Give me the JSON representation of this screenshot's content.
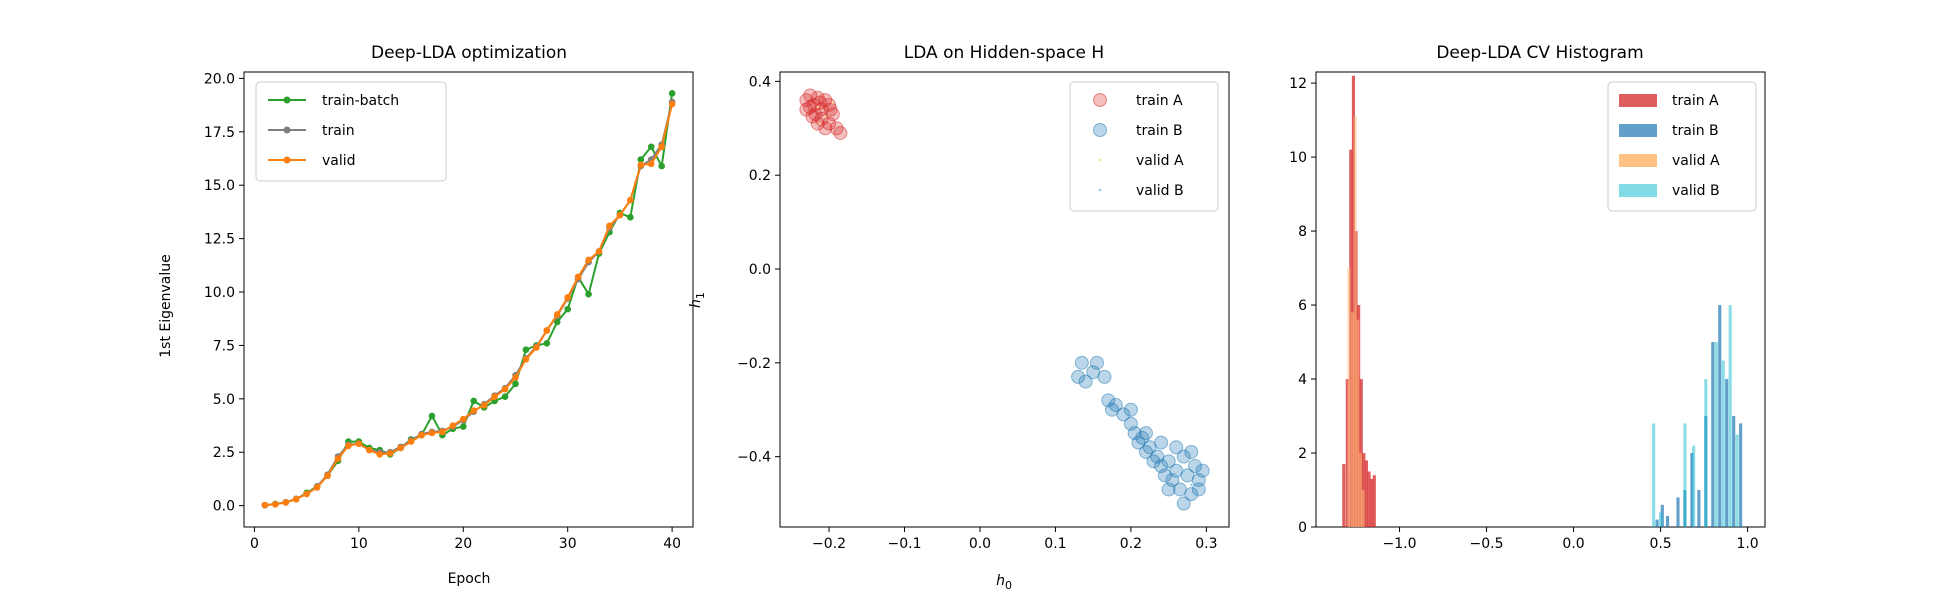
{
  "charts": [
    {
      "title": "Deep-LDA optimization",
      "xlabel": "Epoch",
      "ylabel": "1st Eigenvalue",
      "xticks": [
        "0",
        "10",
        "20",
        "30",
        "40"
      ],
      "yticks": [
        "0.0",
        "2.5",
        "5.0",
        "7.5",
        "10.0",
        "12.5",
        "15.0",
        "17.5",
        "20.0"
      ],
      "legend": [
        "train-batch",
        "train",
        "valid"
      ]
    },
    {
      "title": "LDA on Hidden-space H",
      "xlabel_main": "h",
      "xlabel_sub": "0",
      "ylabel_main": "h",
      "ylabel_sub": "1",
      "xticks": [
        "−0.2",
        "−0.1",
        "0.0",
        "0.1",
        "0.2",
        "0.3"
      ],
      "yticks": [
        "−0.4",
        "−0.2",
        "0.0",
        "0.2",
        "0.4"
      ],
      "legend": [
        "train A",
        "train B",
        "valid A",
        "valid B"
      ]
    },
    {
      "title": "Deep-LDA CV Histogram",
      "xticks": [
        "−1.0",
        "−0.5",
        "0.0",
        "0.5",
        "1.0"
      ],
      "yticks": [
        "0",
        "2",
        "4",
        "6",
        "8",
        "10",
        "12"
      ],
      "legend": [
        "train A",
        "train B",
        "valid A",
        "valid B"
      ]
    }
  ],
  "chart_data": [
    {
      "type": "line",
      "title": "Deep-LDA optimization",
      "xlabel": "Epoch",
      "ylabel": "1st Eigenvalue",
      "xlim": [
        -1,
        42
      ],
      "ylim": [
        -1,
        20.3
      ],
      "x": [
        1,
        2,
        3,
        4,
        5,
        6,
        7,
        8,
        9,
        10,
        11,
        12,
        13,
        14,
        15,
        16,
        17,
        18,
        19,
        20,
        21,
        22,
        23,
        24,
        25,
        26,
        27,
        28,
        29,
        30,
        31,
        32,
        33,
        34,
        35,
        36,
        37,
        38,
        39,
        40
      ],
      "series": [
        {
          "name": "train-batch",
          "color": "#2ca02c",
          "values": [
            0.02,
            0.08,
            0.15,
            0.3,
            0.6,
            0.9,
            1.4,
            2.1,
            3.0,
            3.0,
            2.7,
            2.6,
            2.4,
            2.7,
            3.1,
            3.3,
            4.2,
            3.3,
            3.6,
            3.7,
            4.9,
            4.6,
            4.9,
            5.1,
            5.7,
            7.3,
            7.5,
            7.6,
            8.6,
            9.2,
            10.7,
            9.9,
            11.8,
            12.8,
            13.7,
            13.5,
            16.2,
            16.8,
            15.9,
            19.3
          ]
        },
        {
          "name": "train",
          "color": "#7f7f7f",
          "values": [
            0.02,
            0.07,
            0.16,
            0.32,
            0.55,
            0.9,
            1.45,
            2.3,
            2.85,
            2.9,
            2.6,
            2.5,
            2.5,
            2.75,
            3.05,
            3.35,
            3.45,
            3.5,
            3.7,
            4.0,
            4.4,
            4.75,
            5.15,
            5.5,
            6.1,
            6.9,
            7.45,
            8.2,
            8.9,
            9.7,
            10.6,
            11.4,
            11.9,
            13.0,
            13.6,
            14.3,
            15.9,
            16.2,
            16.9,
            18.9
          ]
        },
        {
          "name": "valid",
          "color": "#ff7f0e",
          "values": [
            0.03,
            0.06,
            0.15,
            0.3,
            0.55,
            0.85,
            1.4,
            2.2,
            2.8,
            2.9,
            2.6,
            2.4,
            2.45,
            2.7,
            3.0,
            3.3,
            3.4,
            3.45,
            3.75,
            4.05,
            4.45,
            4.7,
            5.1,
            5.45,
            6.0,
            6.85,
            7.4,
            8.2,
            8.95,
            9.75,
            10.7,
            11.5,
            11.9,
            13.1,
            13.6,
            14.3,
            15.95,
            16.0,
            16.8,
            18.8
          ]
        }
      ]
    },
    {
      "type": "scatter",
      "title": "LDA on Hidden-space H",
      "xlabel": "h0",
      "ylabel": "h1",
      "xlim": [
        -0.265,
        0.33
      ],
      "ylim": [
        -0.55,
        0.42
      ],
      "series": [
        {
          "name": "train A",
          "color": "#d62728",
          "points": [
            [
              -0.23,
              0.36
            ],
            [
              -0.225,
              0.37
            ],
            [
              -0.22,
              0.35
            ],
            [
              -0.215,
              0.365
            ],
            [
              -0.21,
              0.34
            ],
            [
              -0.205,
              0.36
            ],
            [
              -0.2,
              0.35
            ],
            [
              -0.225,
              0.345
            ],
            [
              -0.218,
              0.33
            ],
            [
              -0.21,
              0.32
            ],
            [
              -0.2,
              0.31
            ],
            [
              -0.195,
              0.33
            ],
            [
              -0.19,
              0.3
            ],
            [
              -0.205,
              0.3
            ],
            [
              -0.215,
              0.31
            ],
            [
              -0.23,
              0.34
            ],
            [
              -0.212,
              0.355
            ],
            [
              -0.198,
              0.34
            ],
            [
              -0.185,
              0.29
            ],
            [
              -0.222,
              0.325
            ]
          ]
        },
        {
          "name": "train B",
          "color": "#1f77b4",
          "points": [
            [
              0.13,
              -0.23
            ],
            [
              0.135,
              -0.2
            ],
            [
              0.14,
              -0.24
            ],
            [
              0.15,
              -0.22
            ],
            [
              0.155,
              -0.2
            ],
            [
              0.165,
              -0.23
            ],
            [
              0.17,
              -0.28
            ],
            [
              0.175,
              -0.3
            ],
            [
              0.18,
              -0.29
            ],
            [
              0.19,
              -0.31
            ],
            [
              0.2,
              -0.33
            ],
            [
              0.205,
              -0.35
            ],
            [
              0.21,
              -0.37
            ],
            [
              0.215,
              -0.36
            ],
            [
              0.22,
              -0.39
            ],
            [
              0.225,
              -0.38
            ],
            [
              0.23,
              -0.41
            ],
            [
              0.235,
              -0.4
            ],
            [
              0.24,
              -0.42
            ],
            [
              0.245,
              -0.44
            ],
            [
              0.25,
              -0.41
            ],
            [
              0.255,
              -0.45
            ],
            [
              0.26,
              -0.43
            ],
            [
              0.265,
              -0.47
            ],
            [
              0.27,
              -0.4
            ],
            [
              0.275,
              -0.44
            ],
            [
              0.28,
              -0.48
            ],
            [
              0.285,
              -0.42
            ],
            [
              0.29,
              -0.45
            ],
            [
              0.295,
              -0.43
            ],
            [
              0.27,
              -0.5
            ],
            [
              0.26,
              -0.38
            ],
            [
              0.25,
              -0.47
            ],
            [
              0.28,
              -0.39
            ],
            [
              0.29,
              -0.47
            ],
            [
              0.24,
              -0.37
            ],
            [
              0.2,
              -0.3
            ],
            [
              0.22,
              -0.35
            ]
          ]
        },
        {
          "name": "valid A",
          "color": "#ffdd99",
          "points": [
            [
              -0.215,
              0.345
            ],
            [
              -0.205,
              0.325
            ],
            [
              -0.195,
              0.355
            ],
            [
              -0.212,
              0.31
            ]
          ]
        },
        {
          "name": "valid B",
          "color": "#88ccdd",
          "points": [
            [
              0.26,
              -0.44
            ],
            [
              0.27,
              -0.43
            ],
            [
              0.25,
              -0.42
            ],
            [
              0.28,
              -0.46
            ]
          ]
        }
      ]
    },
    {
      "type": "bar",
      "title": "Deep-LDA CV Histogram",
      "xlim": [
        -1.48,
        1.1
      ],
      "ylim": [
        0,
        12.3
      ],
      "bin_width": 0.018,
      "series": [
        {
          "name": "train A",
          "color": "#d62728",
          "bins": [
            [
              -1.32,
              1.7
            ],
            [
              -1.3,
              4
            ],
            [
              -1.28,
              10.2
            ],
            [
              -1.265,
              12.2
            ],
            [
              -1.25,
              8
            ],
            [
              -1.235,
              6
            ],
            [
              -1.22,
              4
            ],
            [
              -1.205,
              2
            ],
            [
              -1.19,
              1.8
            ],
            [
              -1.175,
              1.5
            ],
            [
              -1.16,
              1.3
            ],
            [
              -1.145,
              1.4
            ]
          ]
        },
        {
          "name": "train B",
          "color": "#1f77b4",
          "bins": [
            [
              0.48,
              0.2
            ],
            [
              0.51,
              0.6
            ],
            [
              0.54,
              0.3
            ],
            [
              0.6,
              0.8
            ],
            [
              0.64,
              1.0
            ],
            [
              0.68,
              2.0
            ],
            [
              0.72,
              1.0
            ],
            [
              0.76,
              3.0
            ],
            [
              0.8,
              5.0
            ],
            [
              0.84,
              6.0
            ],
            [
              0.88,
              4.0
            ],
            [
              0.92,
              3.0
            ],
            [
              0.96,
              2.8
            ]
          ]
        },
        {
          "name": "valid A",
          "color": "#ffbb78",
          "bins": [
            [
              -1.29,
              7.0
            ],
            [
              -1.27,
              5.8
            ],
            [
              -1.255,
              11.1
            ],
            [
              -1.24,
              5.6
            ],
            [
              -1.225,
              2.0
            ],
            [
              -1.21,
              1.0
            ]
          ]
        },
        {
          "name": "valid B",
          "color": "#17becf",
          "bins": [
            [
              0.46,
              2.8
            ],
            [
              0.5,
              0.4
            ],
            [
              0.64,
              2.8
            ],
            [
              0.69,
              2.2
            ],
            [
              0.76,
              4.0
            ],
            [
              0.82,
              5.0
            ],
            [
              0.86,
              4.5
            ],
            [
              0.9,
              6.0
            ],
            [
              0.94,
              2.5
            ]
          ]
        }
      ]
    }
  ]
}
